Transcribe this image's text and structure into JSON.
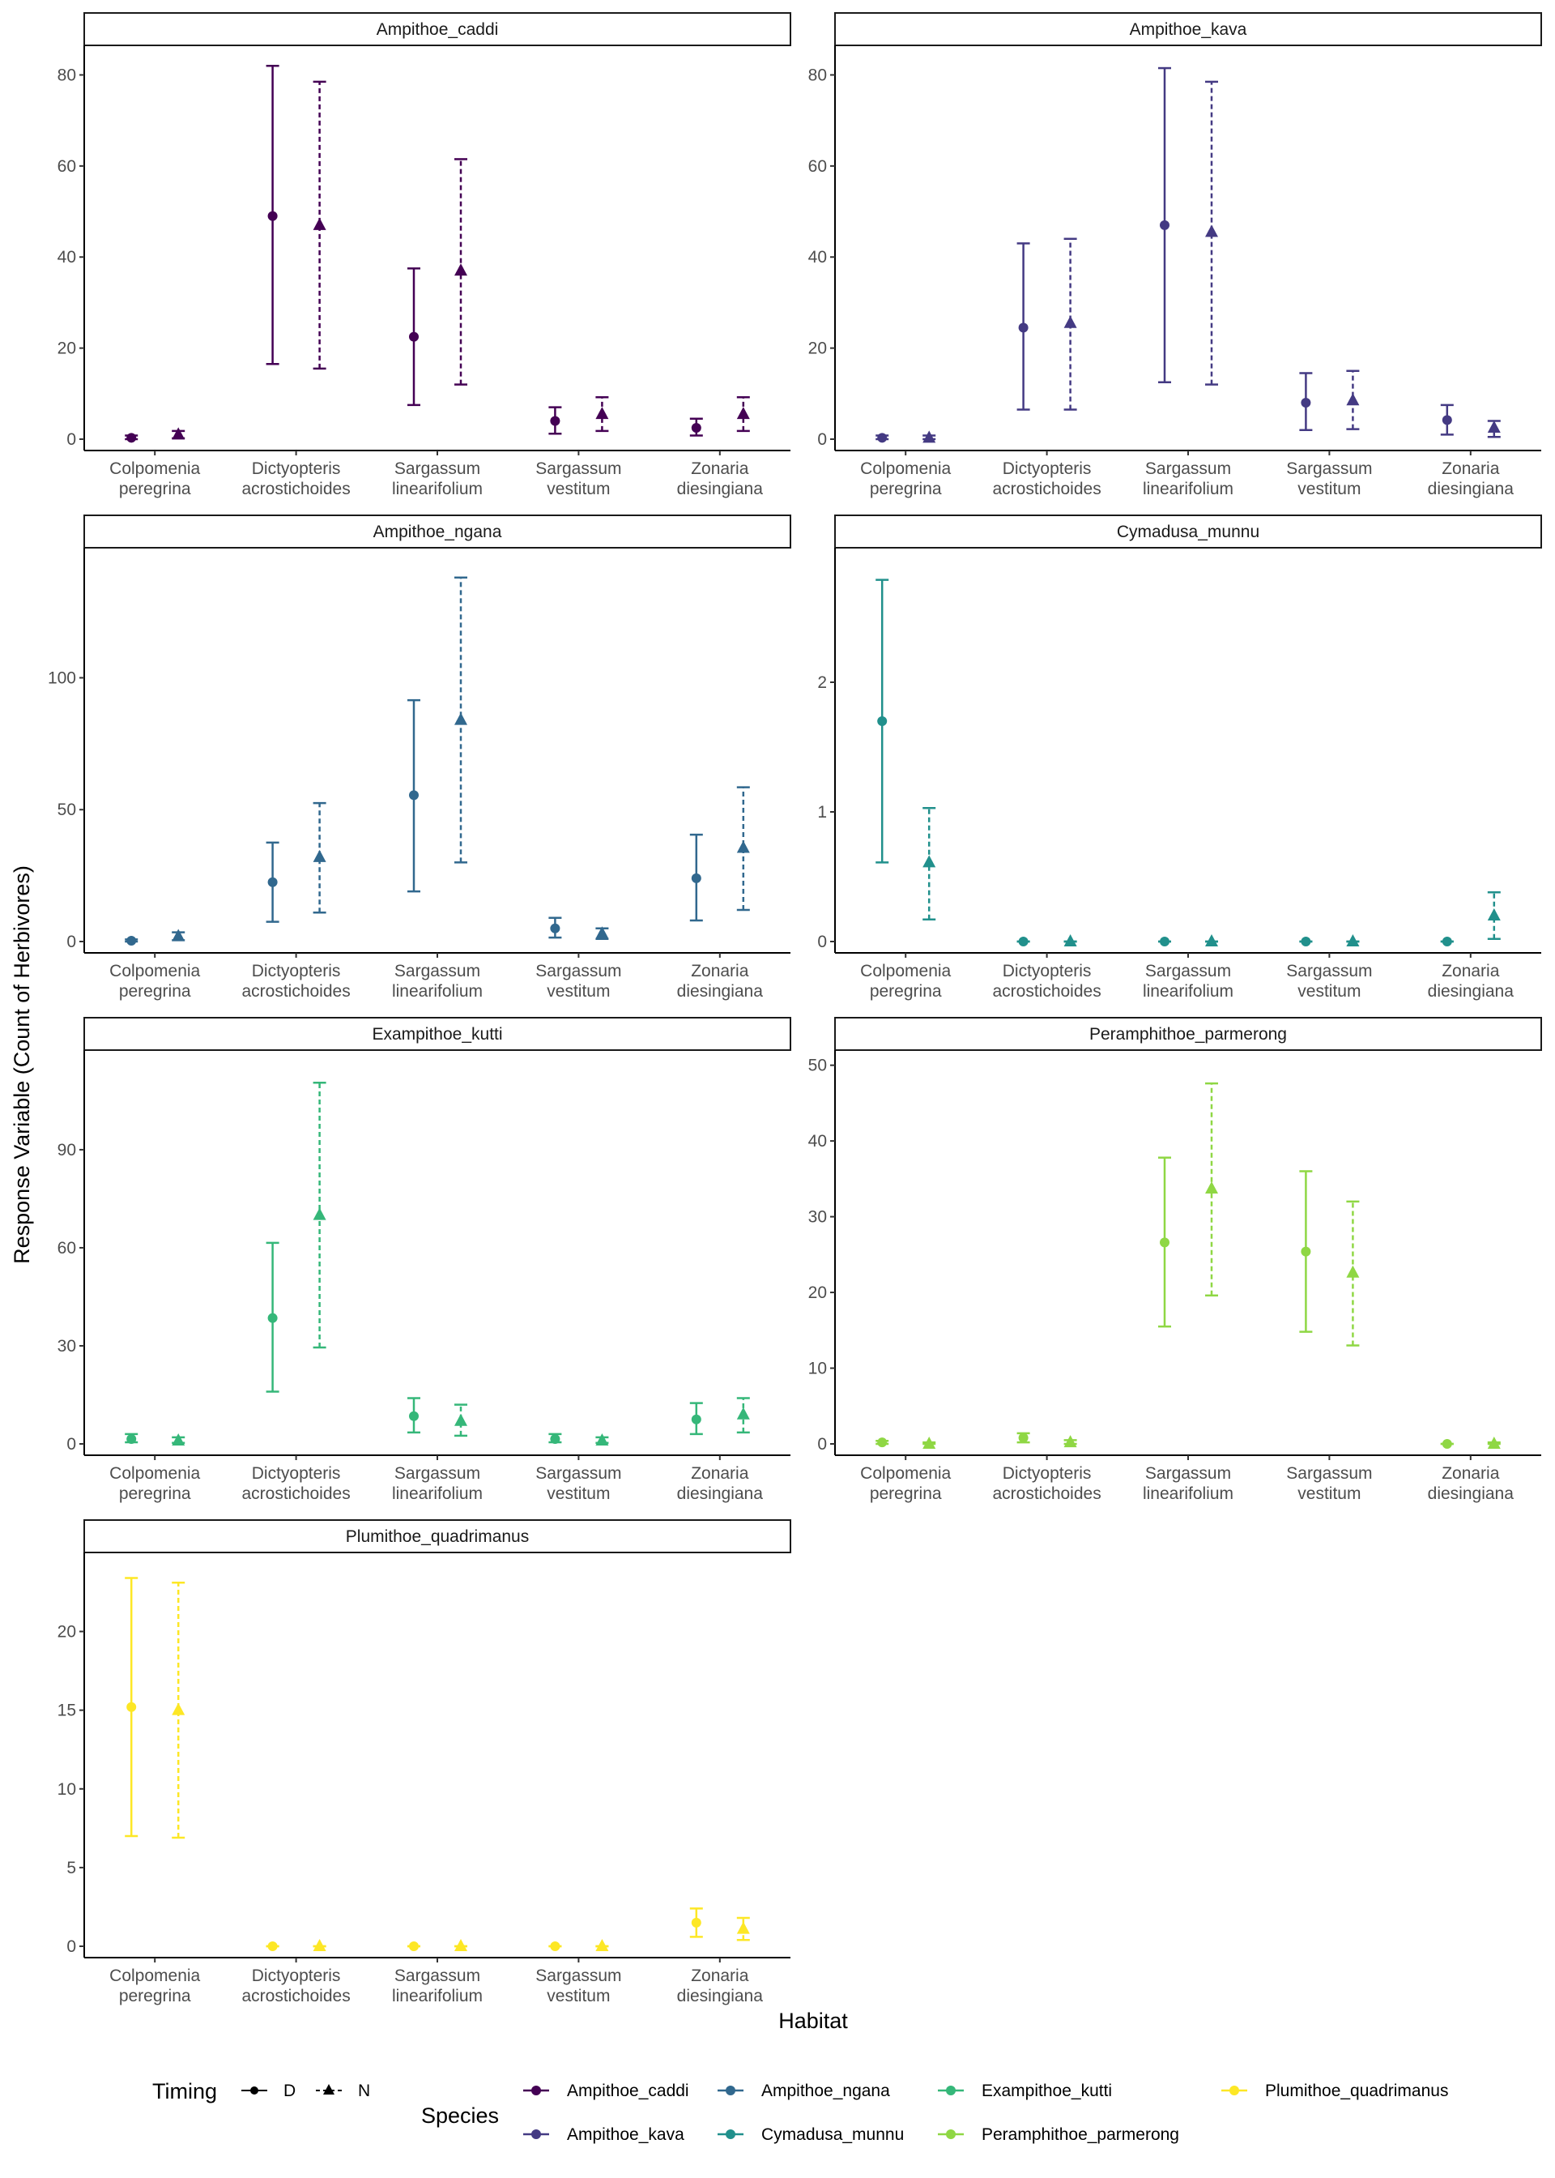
{
  "figure": {
    "xlabel": "Habitat",
    "ylabel": "Response Variable (Count of Herbivores)"
  },
  "legend": {
    "timing_title": "Timing",
    "timing_items": [
      {
        "label": "D",
        "shape": "circle",
        "line": "solid"
      },
      {
        "label": "N",
        "shape": "triangle",
        "line": "dashed"
      }
    ],
    "species_title": "Species",
    "species_items": [
      {
        "label": "Ampithoe_caddi",
        "color": "#440154"
      },
      {
        "label": "Ampithoe_kava",
        "color": "#443A83"
      },
      {
        "label": "Ampithoe_ngana",
        "color": "#31688E"
      },
      {
        "label": "Cymadusa_munnu",
        "color": "#21908C"
      },
      {
        "label": "Exampithoe_kutti",
        "color": "#35B779"
      },
      {
        "label": "Peramphithoe_parmerong",
        "color": "#8FD744"
      },
      {
        "label": "Plumithoe_quadrimanus",
        "color": "#FDE725"
      }
    ]
  },
  "chart_data": {
    "type": "scatter",
    "subtype": "point-range faceted by species",
    "categories": [
      "Colpomenia peregrina",
      "Dictyopteris acrostichoides",
      "Sargassum linearifolium",
      "Sargassum vestitum",
      "Zonaria diesingiana"
    ],
    "category_lines": [
      [
        "Colpomenia",
        "peregrina"
      ],
      [
        "Dictyopteris",
        "acrostichoides"
      ],
      [
        "Sargassum",
        "linearifolium"
      ],
      [
        "Sargassum",
        "vestitum"
      ],
      [
        "Zonaria",
        "diesingiana"
      ]
    ],
    "xlabel": "Habitat",
    "ylabel": "Response Variable (Count of Herbivores)",
    "grid": false,
    "facets": [
      {
        "title": "Ampithoe_caddi",
        "color": "#440154",
        "ylim": [
          0,
          84
        ],
        "yticks": [
          0,
          20,
          40,
          60,
          80
        ],
        "series": [
          {
            "name": "D",
            "mean": [
              0.3,
              49,
              22.5,
              4,
              2.5
            ],
            "lower": [
              0,
              16.5,
              7.5,
              1.2,
              0.8
            ],
            "upper": [
              0.8,
              82,
              37.5,
              7,
              4.5
            ]
          },
          {
            "name": "N",
            "mean": [
              1,
              47,
              37,
              5.5,
              5.5
            ],
            "lower": [
              0.2,
              15.5,
              12,
              1.8,
              1.8
            ],
            "upper": [
              1.8,
              78.5,
              61.5,
              9.2,
              9.2
            ]
          }
        ]
      },
      {
        "title": "Ampithoe_kava",
        "color": "#443A83",
        "ylim": [
          0,
          84
        ],
        "yticks": [
          0,
          20,
          40,
          60,
          80
        ],
        "series": [
          {
            "name": "D",
            "mean": [
              0.3,
              24.5,
              47,
              8,
              4.2
            ],
            "lower": [
              0,
              6.5,
              12.5,
              2,
              1
            ],
            "upper": [
              0.8,
              43,
              81.5,
              14.5,
              7.5
            ]
          },
          {
            "name": "N",
            "mean": [
              0.3,
              25.5,
              45.5,
              8.5,
              2.5
            ],
            "lower": [
              0,
              6.5,
              12,
              2.2,
              0.5
            ],
            "upper": [
              0.8,
              44,
              78.5,
              15,
              4
            ]
          }
        ]
      },
      {
        "title": "Ampithoe_ngana",
        "color": "#31688E",
        "ylim": [
          0,
          145
        ],
        "yticks": [
          0,
          50,
          100
        ],
        "series": [
          {
            "name": "D",
            "mean": [
              0.3,
              22.5,
              55.5,
              5,
              24
            ],
            "lower": [
              0,
              7.5,
              19,
              1.5,
              8
            ],
            "upper": [
              0.8,
              37.5,
              91.5,
              9,
              40.5
            ]
          },
          {
            "name": "N",
            "mean": [
              2,
              32,
              84,
              3,
              35.5
            ],
            "lower": [
              0.5,
              11,
              30,
              1,
              12
            ],
            "upper": [
              3.5,
              52.5,
              138,
              5,
              58.5
            ]
          }
        ]
      },
      {
        "title": "Cymadusa_munnu",
        "color": "#21908C",
        "ylim": [
          0,
          2.95
        ],
        "yticks": [
          0,
          1,
          2
        ],
        "series": [
          {
            "name": "D",
            "mean": [
              1.7,
              0,
              0,
              0,
              0
            ],
            "lower": [
              0.61,
              0,
              0,
              0,
              0
            ],
            "upper": [
              2.79,
              0,
              0,
              0,
              0
            ]
          },
          {
            "name": "N",
            "mean": [
              0.61,
              0,
              0,
              0,
              0.2
            ],
            "lower": [
              0.17,
              0,
              0,
              0,
              0.02
            ],
            "upper": [
              1.03,
              0,
              0,
              0,
              0.38
            ]
          }
        ]
      },
      {
        "title": "Exampithoe_kutti",
        "color": "#35B779",
        "ylim": [
          0,
          117
        ],
        "yticks": [
          0,
          30,
          60,
          90
        ],
        "series": [
          {
            "name": "D",
            "mean": [
              1.5,
              38.5,
              8.5,
              1.5,
              7.5
            ],
            "lower": [
              0.5,
              16,
              3.5,
              0.5,
              3
            ],
            "upper": [
              3,
              61.5,
              14,
              3,
              12.5
            ]
          },
          {
            "name": "N",
            "mean": [
              1,
              70,
              7,
              1,
              9
            ],
            "lower": [
              0.3,
              29.5,
              2.5,
              0.3,
              3.5
            ],
            "upper": [
              2,
              110.5,
              12,
              2,
              14
            ]
          }
        ]
      },
      {
        "title": "Peramphithoe_parmerong",
        "color": "#8FD744",
        "ylim": [
          0,
          50.5
        ],
        "yticks": [
          0,
          10,
          20,
          30,
          40,
          50
        ],
        "series": [
          {
            "name": "D",
            "mean": [
              0.2,
              0.8,
              26.6,
              25.4,
              0
            ],
            "lower": [
              0,
              0.2,
              15.5,
              14.8,
              0
            ],
            "upper": [
              0.4,
              1.4,
              37.8,
              36,
              0
            ]
          },
          {
            "name": "N",
            "mean": [
              0,
              0.2,
              33.7,
              22.6,
              0
            ],
            "lower": [
              0,
              0,
              19.6,
              13,
              0
            ],
            "upper": [
              0.2,
              0.5,
              47.6,
              32,
              0.2
            ]
          }
        ]
      },
      {
        "title": "Plumithoe_quadrimanus",
        "color": "#FDE725",
        "ylim": [
          0,
          24.3
        ],
        "yticks": [
          0,
          5,
          10,
          15,
          20
        ],
        "series": [
          {
            "name": "D",
            "mean": [
              15.2,
              0,
              0,
              0,
              1.5
            ],
            "lower": [
              7,
              0,
              0,
              0,
              0.6
            ],
            "upper": [
              23.4,
              0,
              0,
              0,
              2.4
            ]
          },
          {
            "name": "N",
            "mean": [
              15,
              0,
              0,
              0,
              1.1
            ],
            "lower": [
              6.9,
              0,
              0,
              0,
              0.4
            ],
            "upper": [
              23.1,
              0,
              0,
              0,
              1.8
            ]
          }
        ]
      }
    ]
  }
}
